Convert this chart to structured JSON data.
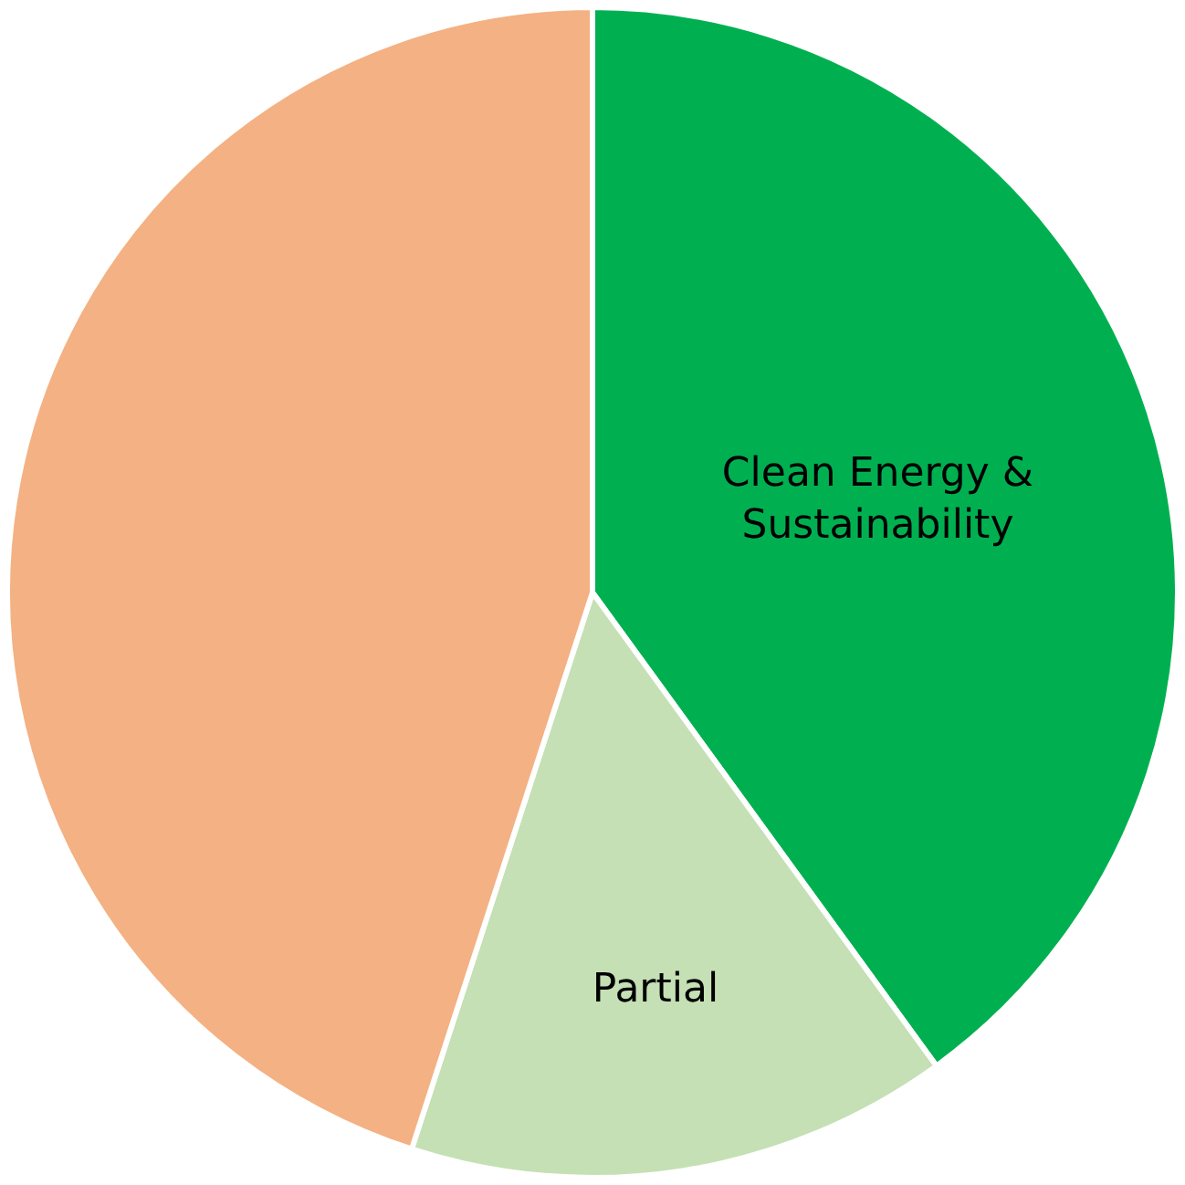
{
  "chart_data": {
    "type": "pie",
    "categories": [
      "Clean Energy & Sustainability",
      "Partial",
      null
    ],
    "values": [
      40,
      15,
      45
    ],
    "colors": [
      "#00b050",
      "#c5e0b4",
      "#f4b183"
    ],
    "legend": false
  }
}
